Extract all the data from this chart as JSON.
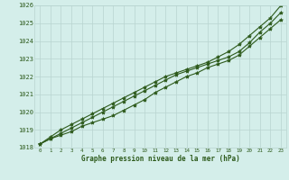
{
  "x_values": [
    0,
    1,
    2,
    3,
    4,
    5,
    6,
    7,
    8,
    9,
    10,
    11,
    12,
    13,
    14,
    15,
    16,
    17,
    18,
    19,
    20,
    21,
    22,
    23
  ],
  "line1": [
    1018.2,
    1018.5,
    1018.7,
    1018.9,
    1019.2,
    1019.4,
    1019.6,
    1019.8,
    1020.1,
    1020.4,
    1020.7,
    1021.1,
    1021.4,
    1021.7,
    1022.0,
    1022.2,
    1022.5,
    1022.7,
    1022.9,
    1023.2,
    1023.7,
    1024.2,
    1024.7,
    1025.2
  ],
  "line2": [
    1018.2,
    1018.5,
    1018.8,
    1019.1,
    1019.4,
    1019.7,
    1020.0,
    1020.3,
    1020.6,
    1020.9,
    1021.2,
    1021.5,
    1021.8,
    1022.1,
    1022.3,
    1022.5,
    1022.7,
    1022.9,
    1023.1,
    1023.4,
    1023.9,
    1024.5,
    1025.0,
    1025.6
  ],
  "line3": [
    1018.2,
    1018.6,
    1019.0,
    1019.3,
    1019.6,
    1019.9,
    1020.2,
    1020.5,
    1020.8,
    1021.1,
    1021.4,
    1021.7,
    1022.0,
    1022.2,
    1022.4,
    1022.6,
    1022.8,
    1023.1,
    1023.4,
    1023.8,
    1024.3,
    1024.8,
    1025.3,
    1026.0
  ],
  "line_color": "#2d5a1b",
  "bg_color": "#d4eeea",
  "grid_color": "#b8d4d0",
  "xlabel": "Graphe pression niveau de la mer (hPa)",
  "ylim": [
    1018,
    1026
  ],
  "xlim_min": -0.5,
  "xlim_max": 23.5,
  "yticks": [
    1018,
    1019,
    1020,
    1021,
    1022,
    1023,
    1024,
    1025,
    1026
  ],
  "xticks": [
    0,
    1,
    2,
    3,
    4,
    5,
    6,
    7,
    8,
    9,
    10,
    11,
    12,
    13,
    14,
    15,
    16,
    17,
    18,
    19,
    20,
    21,
    22,
    23
  ]
}
